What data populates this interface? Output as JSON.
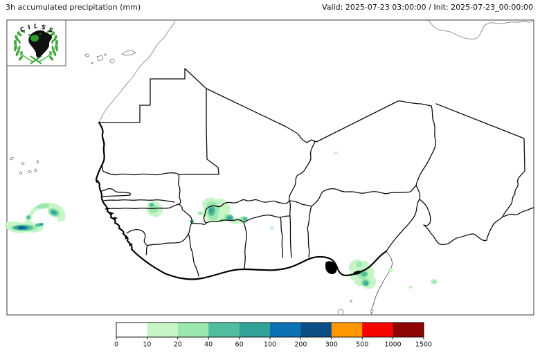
{
  "header": {
    "title_left": "3h accumulated precipitation (mm)",
    "title_right": "Valid: 2025-07-23 03:00:00 / Init: 2025-07-23_00:00:00"
  },
  "logo": {
    "acronym": "CILSS"
  },
  "colorbar": {
    "labels": [
      "0",
      "10",
      "20",
      "40",
      "60",
      "100",
      "200",
      "300",
      "500",
      "1000",
      "1500"
    ],
    "colors": [
      "#ffffff",
      "#c8f5c8",
      "#9ae8b0",
      "#52bd9e",
      "#33a399",
      "#0b72b3",
      "#0b4f87",
      "#ff9800",
      "#f90500",
      "#8e0603"
    ]
  },
  "chart_data": {
    "type": "map",
    "title": "3h accumulated precipitation (mm)",
    "valid_time": "2025-07-23 03:00:00",
    "init_time": "2025-07-23_00:00:00",
    "region": "West Africa / Sahel (CILSS domain)",
    "colorbar": {
      "units": "mm",
      "boundaries": [
        0,
        10,
        20,
        40,
        60,
        100,
        200,
        300,
        500,
        1000,
        1500
      ],
      "colors": [
        "#ffffff",
        "#c8f5c8",
        "#9ae8b0",
        "#52bd9e",
        "#33a399",
        "#0b72b3",
        "#0b4f87",
        "#ff9800",
        "#f90500",
        "#8e0603"
      ],
      "orientation": "horizontal",
      "position": "bottom"
    },
    "precipitation_areas": [
      {
        "location": "Atlantic Ocean southwest of Dakar",
        "intensity_mm": "10-200",
        "note": "arc-shaped band with embedded 100-200 mm blue cores"
      },
      {
        "location": "Senegal-Mali border",
        "intensity_mm": "10-60",
        "note": "small patch with teal core on border"
      },
      {
        "location": "southwest Burkina Faso / Mali border",
        "intensity_mm": "10-100",
        "note": "cluster of cells with 60-100 mm cores"
      },
      {
        "location": "eastern Burkina Faso / Benin-Niger border",
        "intensity_mm": "10-20",
        "note": "isolated small cell"
      },
      {
        "location": "central Niger",
        "intensity_mm": "10-20",
        "note": "tiny isolated cell"
      },
      {
        "location": "Niger Delta coast of Nigeria",
        "intensity_mm": "10-100",
        "note": "coastal cluster with 40-100 mm cores"
      },
      {
        "location": "south of Lake Chad / northern Cameroon border",
        "intensity_mm": "10-40",
        "note": "scattered small cells"
      }
    ]
  }
}
